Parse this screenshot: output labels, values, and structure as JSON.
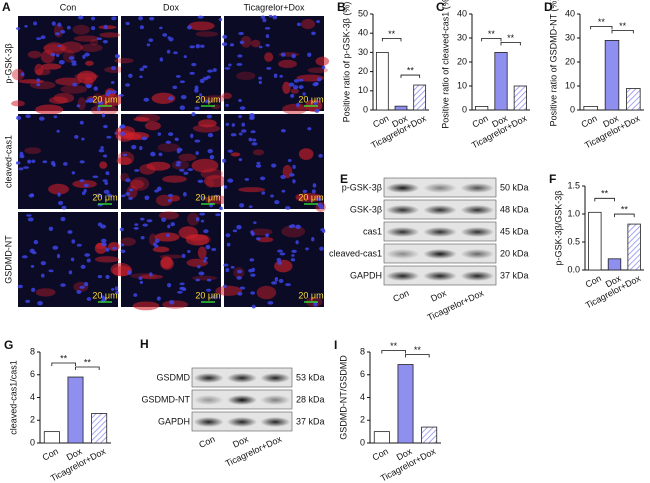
{
  "microscopy": {
    "panel": "A",
    "columns": [
      "Con",
      "Dox",
      "Ticagrelor+Dox"
    ],
    "rows": [
      "p-GSK-3β",
      "cleaved-cas1",
      "GSDMD-NT"
    ],
    "scale_bar": "20 μm"
  },
  "blots": [
    {
      "panel": "E",
      "categories": [
        "Con",
        "Dox",
        "Ticagrelor+Dox"
      ],
      "rows": [
        {
          "protein": "p-GSK-3β",
          "kda": "50 kDa"
        },
        {
          "protein": "GSK-3β",
          "kda": "48 kDa"
        },
        {
          "protein": "cas1",
          "kda": "45 kDa"
        },
        {
          "protein": "cleaved-cas1",
          "kda": "20 kDa"
        },
        {
          "protein": "GAPDH",
          "kda": "37 kDa"
        }
      ]
    },
    {
      "panel": "H",
      "categories": [
        "Con",
        "Dox",
        "Ticagrelor+Dox"
      ],
      "rows": [
        {
          "protein": "GSDMD",
          "kda": "53 kDa"
        },
        {
          "protein": "GSDMD-NT",
          "kda": "28 kDa"
        },
        {
          "protein": "GAPDH",
          "kda": "37 kDa"
        }
      ]
    }
  ],
  "chart_data": [
    {
      "type": "bar",
      "panel": "B",
      "y_label": "Positive ratio of p-GSK-3β (%)",
      "categories": [
        "Con",
        "Dox",
        "Ticagrelor+Dox"
      ],
      "values": [
        30,
        2,
        13
      ],
      "bar_colors": [
        "#ffffff",
        "#8f8ff0",
        "#ffffff"
      ],
      "hatch": [
        false,
        false,
        true
      ],
      "ylim": [
        0,
        50
      ],
      "yticks": [
        0,
        10,
        20,
        30,
        40,
        50
      ],
      "comparisons": [
        {
          "label": "**",
          "groups": [
            0,
            1
          ]
        },
        {
          "label": "**",
          "groups": [
            1,
            2
          ]
        }
      ]
    },
    {
      "type": "bar",
      "panel": "C",
      "y_label": "Positive ratio of cleaved-cas1 (%)",
      "categories": [
        "Con",
        "Dox",
        "Ticagrelor+Dox"
      ],
      "values": [
        1.5,
        24,
        10
      ],
      "bar_colors": [
        "#ffffff",
        "#8f8ff0",
        "#ffffff"
      ],
      "hatch": [
        false,
        false,
        true
      ],
      "ylim": [
        0,
        40
      ],
      "yticks": [
        0,
        10,
        20,
        30,
        40
      ],
      "comparisons": [
        {
          "label": "**",
          "groups": [
            0,
            1
          ]
        },
        {
          "label": "**",
          "groups": [
            1,
            2
          ]
        }
      ]
    },
    {
      "type": "bar",
      "panel": "D",
      "y_label": "Positive ratio of GSDMD-NT (%)",
      "categories": [
        "Con",
        "Dox",
        "Ticagrelor+Dox"
      ],
      "values": [
        1.5,
        29,
        9
      ],
      "bar_colors": [
        "#ffffff",
        "#8f8ff0",
        "#ffffff"
      ],
      "hatch": [
        false,
        false,
        true
      ],
      "ylim": [
        0,
        40
      ],
      "yticks": [
        0,
        10,
        20,
        30,
        40
      ],
      "comparisons": [
        {
          "label": "**",
          "groups": [
            0,
            1
          ]
        },
        {
          "label": "**",
          "groups": [
            1,
            2
          ]
        }
      ]
    },
    {
      "type": "bar",
      "panel": "F",
      "y_label": "p-GSK-3β/GSK-3β",
      "categories": [
        "Con",
        "Dox",
        "Ticagrelor+Dox"
      ],
      "values": [
        1.03,
        0.2,
        0.82
      ],
      "bar_colors": [
        "#ffffff",
        "#8f8ff0",
        "#ffffff"
      ],
      "hatch": [
        false,
        false,
        true
      ],
      "ylim": [
        0,
        1.5
      ],
      "yticks": [
        {
          "value": 0,
          "label": "0.0"
        },
        0.5,
        {
          "value": 1,
          "label": "1.0"
        },
        1.5
      ],
      "comparisons": [
        {
          "label": "**",
          "groups": [
            0,
            1
          ]
        },
        {
          "label": "**",
          "groups": [
            1,
            2
          ]
        }
      ]
    },
    {
      "type": "bar",
      "panel": "G",
      "y_label": "cleaved-cas1/cas1",
      "categories": [
        "Con",
        "Dox",
        "Ticagrelor+Dox"
      ],
      "values": [
        1.0,
        5.8,
        2.6
      ],
      "bar_colors": [
        "#ffffff",
        "#8f8ff0",
        "#ffffff"
      ],
      "hatch": [
        false,
        false,
        true
      ],
      "ylim": [
        0,
        8
      ],
      "yticks": [
        0,
        2,
        4,
        6,
        8
      ],
      "comparisons": [
        {
          "label": "**",
          "groups": [
            0,
            1
          ]
        },
        {
          "label": "**",
          "groups": [
            1,
            2
          ]
        }
      ]
    },
    {
      "type": "bar",
      "panel": "I",
      "y_label": "GSDMD-NT/GSDMD",
      "categories": [
        "Con",
        "Dox",
        "Ticagrelor+Dox"
      ],
      "values": [
        1.0,
        6.9,
        1.4
      ],
      "bar_colors": [
        "#ffffff",
        "#8f8ff0",
        "#ffffff"
      ],
      "hatch": [
        false,
        false,
        true
      ],
      "ylim": [
        0,
        8
      ],
      "yticks": [
        0,
        2,
        4,
        6,
        8
      ],
      "comparisons": [
        {
          "label": "**",
          "groups": [
            0,
            1
          ]
        },
        {
          "label": "**",
          "groups": [
            1,
            2
          ]
        }
      ]
    }
  ]
}
